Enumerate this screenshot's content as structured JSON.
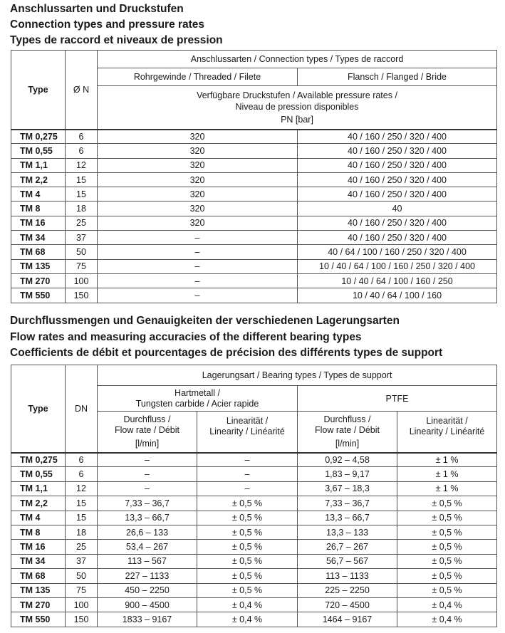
{
  "section1": {
    "titles": [
      "Anschlussarten und Druckstufen",
      "Connection types and pressure rates",
      "Types de raccord et niveaux de pression"
    ],
    "headers": {
      "type": "Type",
      "dn": "Ø N",
      "connection_types": "Anschlussarten / Connection types / Types de raccord",
      "threaded": "Rohrgewinde / Threaded / Filete",
      "flanged": "Flansch / Flanged / Bride",
      "pressure_line1": "Verfügbare Druckstufen / Available pressure rates /",
      "pressure_line2": "Niveau de pression disponibles",
      "pressure_unit": "PN [bar]"
    },
    "rows": [
      [
        "TM 0,275",
        "6",
        "320",
        "40 / 160 / 250 / 320 / 400"
      ],
      [
        "TM 0,55",
        "6",
        "320",
        "40 / 160 / 250 / 320 / 400"
      ],
      [
        "TM 1,1",
        "12",
        "320",
        "40 / 160 / 250 / 320 / 400"
      ],
      [
        "TM 2,2",
        "15",
        "320",
        "40 / 160 / 250 / 320 / 400"
      ],
      [
        "TM 4",
        "15",
        "320",
        "40 / 160 / 250 / 320 / 400"
      ],
      [
        "TM 8",
        "18",
        "320",
        "40"
      ],
      [
        "TM 16",
        "25",
        "320",
        "40 / 160 / 250 / 320 / 400"
      ],
      [
        "TM 34",
        "37",
        "–",
        "40 / 160 / 250 / 320 / 400"
      ],
      [
        "TM 68",
        "50",
        "–",
        "40 / 64 / 100 / 160 / 250 / 320 / 400"
      ],
      [
        "TM 135",
        "75",
        "–",
        "10 / 40 / 64 / 100 / 160 / 250 / 320 / 400"
      ],
      [
        "TM 270",
        "100",
        "–",
        "10 / 40 / 64 / 100 / 160 / 250"
      ],
      [
        "TM 550",
        "150",
        "–",
        "10 / 40 / 64 / 100 / 160"
      ]
    ]
  },
  "section2": {
    "titles": [
      "Durchflussmengen und Genauigkeiten der verschiedenen Lagerungsarten",
      "Flow rates and measuring accuracies of the different bearing types",
      "Coefficients de débit et pourcentages de précision des différents types de support"
    ],
    "headers": {
      "type": "Type",
      "dn": "DN",
      "bearing_types": "Lagerungsart / Bearing types / Types de support",
      "carbide_line1": "Hartmetall /",
      "carbide_line2": "Tungsten carbide / Acier rapide",
      "ptfe": "PTFE",
      "flow_line1": "Durchfluss /",
      "flow_line2": "Flow rate / Débit",
      "flow_unit": "[l/min]",
      "lin_line1": "Linearität /",
      "lin_line2": "Linearity / Linéarité"
    },
    "rows": [
      [
        "TM 0,275",
        "6",
        "–",
        "–",
        "0,92 – 4,58",
        "± 1 %"
      ],
      [
        "TM 0,55",
        "6",
        "–",
        "–",
        "1,83 – 9,17",
        "± 1 %"
      ],
      [
        "TM 1,1",
        "12",
        "–",
        "–",
        "3,67 – 18,3",
        "± 1 %"
      ],
      [
        "TM 2,2",
        "15",
        "7,33 – 36,7",
        "± 0,5 %",
        "7,33 – 36,7",
        "± 0,5 %"
      ],
      [
        "TM 4",
        "15",
        "13,3 – 66,7",
        "± 0,5 %",
        "13,3 – 66,7",
        "± 0,5 %"
      ],
      [
        "TM 8",
        "18",
        "26,6 – 133",
        "± 0,5 %",
        "13,3 – 133",
        "± 0,5 %"
      ],
      [
        "TM 16",
        "25",
        "53,4 – 267",
        "± 0,5 %",
        "26,7 – 267",
        "± 0,5 %"
      ],
      [
        "TM 34",
        "37",
        "113 – 567",
        "± 0,5 %",
        "56,7 – 567",
        "± 0,5 %"
      ],
      [
        "TM 68",
        "50",
        "227 – 1133",
        "± 0,5 %",
        "113 – 1133",
        "± 0,5 %"
      ],
      [
        "TM 135",
        "75",
        "450 – 2250",
        "± 0,5 %",
        "225 – 2250",
        "± 0,5 %"
      ],
      [
        "TM 270",
        "100",
        "900 – 4500",
        "± 0,4 %",
        "720 – 4500",
        "± 0,4 %"
      ],
      [
        "TM 550",
        "150",
        "1833 – 9167",
        "± 0,4 %",
        "1464 – 9167",
        "± 0,4 %"
      ]
    ]
  }
}
